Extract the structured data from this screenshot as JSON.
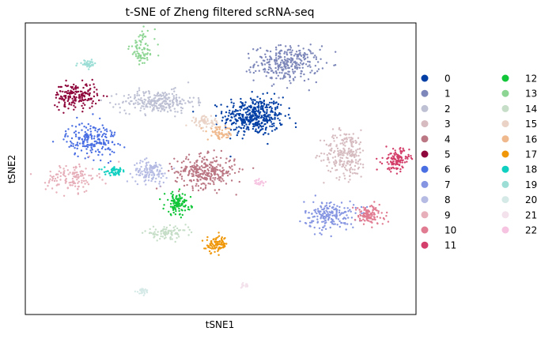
{
  "chart_data": {
    "type": "scatter",
    "title": "t-SNE of Zheng filtered scRNA-seq",
    "xlabel": "tSNE1",
    "ylabel": "tSNE2",
    "xlim": [
      -50,
      50
    ],
    "ylim": [
      -50,
      50
    ],
    "x_ticks": "none",
    "y_ticks": "none",
    "grid": false,
    "legend_placement": "right, outside plot, two columns",
    "clusters": [
      {
        "name": "0",
        "color": "#023fa5",
        "center": [
          8.5,
          18.0
        ],
        "spread": [
          7.0,
          6.0
        ],
        "n": 420
      },
      {
        "name": "1",
        "color": "#7d87b9",
        "center": [
          17.0,
          36.0
        ],
        "spread": [
          7.5,
          5.5
        ],
        "n": 300
      },
      {
        "name": "2",
        "color": "#bec1d4",
        "center": [
          -16.0,
          23.0
        ],
        "spread": [
          8.5,
          3.5
        ],
        "n": 260
      },
      {
        "name": "3",
        "color": "#d6bcc0",
        "center": [
          32.0,
          5.0
        ],
        "spread": [
          5.0,
          7.5
        ],
        "n": 230
      },
      {
        "name": "4",
        "color": "#bb7784",
        "center": [
          -4.0,
          -1.0
        ],
        "spread": [
          7.0,
          5.0
        ],
        "n": 300
      },
      {
        "name": "5",
        "color": "#8e063b",
        "center": [
          -37.0,
          25.0
        ],
        "spread": [
          5.0,
          4.0
        ],
        "n": 180
      },
      {
        "name": "6",
        "color": "#4a6fe3",
        "center": [
          -33.0,
          10.0
        ],
        "spread": [
          6.0,
          5.5
        ],
        "n": 200
      },
      {
        "name": "7",
        "color": "#8595e1",
        "center": [
          28.0,
          -16.0
        ],
        "spread": [
          6.0,
          4.5
        ],
        "n": 190
      },
      {
        "name": "8",
        "color": "#b5bbe3",
        "center": [
          -18.0,
          -1.0
        ],
        "spread": [
          4.0,
          3.5
        ],
        "n": 120
      },
      {
        "name": "9",
        "color": "#e6afb9",
        "center": [
          -38.0,
          -3.0
        ],
        "spread": [
          6.0,
          4.5
        ],
        "n": 130
      },
      {
        "name": "10",
        "color": "#e07b91",
        "center": [
          38.0,
          -16.0
        ],
        "spread": [
          3.5,
          3.0
        ],
        "n": 120
      },
      {
        "name": "11",
        "color": "#d33f6a",
        "center": [
          45.0,
          3.0
        ],
        "spread": [
          3.0,
          3.5
        ],
        "n": 120
      },
      {
        "name": "12",
        "color": "#11c638",
        "center": [
          -11.0,
          -12.0
        ],
        "spread": [
          3.0,
          3.5
        ],
        "n": 110
      },
      {
        "name": "13",
        "color": "#8dd593",
        "center": [
          -20.0,
          41.0
        ],
        "spread": [
          3.0,
          5.5
        ],
        "n": 80
      },
      {
        "name": "14",
        "color": "#c6dec7",
        "center": [
          -14.0,
          -22.0
        ],
        "spread": [
          5.0,
          1.8
        ],
        "n": 90
      },
      {
        "name": "15",
        "color": "#ead3c6",
        "center": [
          -4.0,
          16.0
        ],
        "spread": [
          3.5,
          2.0
        ],
        "n": 60
      },
      {
        "name": "16",
        "color": "#f0b98d",
        "center": [
          0.0,
          12.0
        ],
        "spread": [
          3.0,
          2.0
        ],
        "n": 60
      },
      {
        "name": "17",
        "color": "#ef9708",
        "center": [
          -1.0,
          -26.0
        ],
        "spread": [
          2.5,
          2.5
        ],
        "n": 90
      },
      {
        "name": "18",
        "color": "#0fcfc0",
        "center": [
          -27.0,
          -1.0
        ],
        "spread": [
          2.5,
          1.2
        ],
        "n": 50
      },
      {
        "name": "19",
        "color": "#9cded6",
        "center": [
          -34.0,
          36.0
        ],
        "spread": [
          2.0,
          1.0
        ],
        "n": 35
      },
      {
        "name": "20",
        "color": "#d5eae7",
        "center": [
          -20.0,
          -42.0
        ],
        "spread": [
          1.5,
          1.0
        ],
        "n": 25
      },
      {
        "name": "21",
        "color": "#f3e1eb",
        "center": [
          6.0,
          -40.0
        ],
        "spread": [
          1.5,
          0.8
        ],
        "n": 20
      },
      {
        "name": "22",
        "color": "#f6c4e1",
        "center": [
          10.0,
          -5.0
        ],
        "spread": [
          1.2,
          1.0
        ],
        "n": 20
      }
    ]
  }
}
